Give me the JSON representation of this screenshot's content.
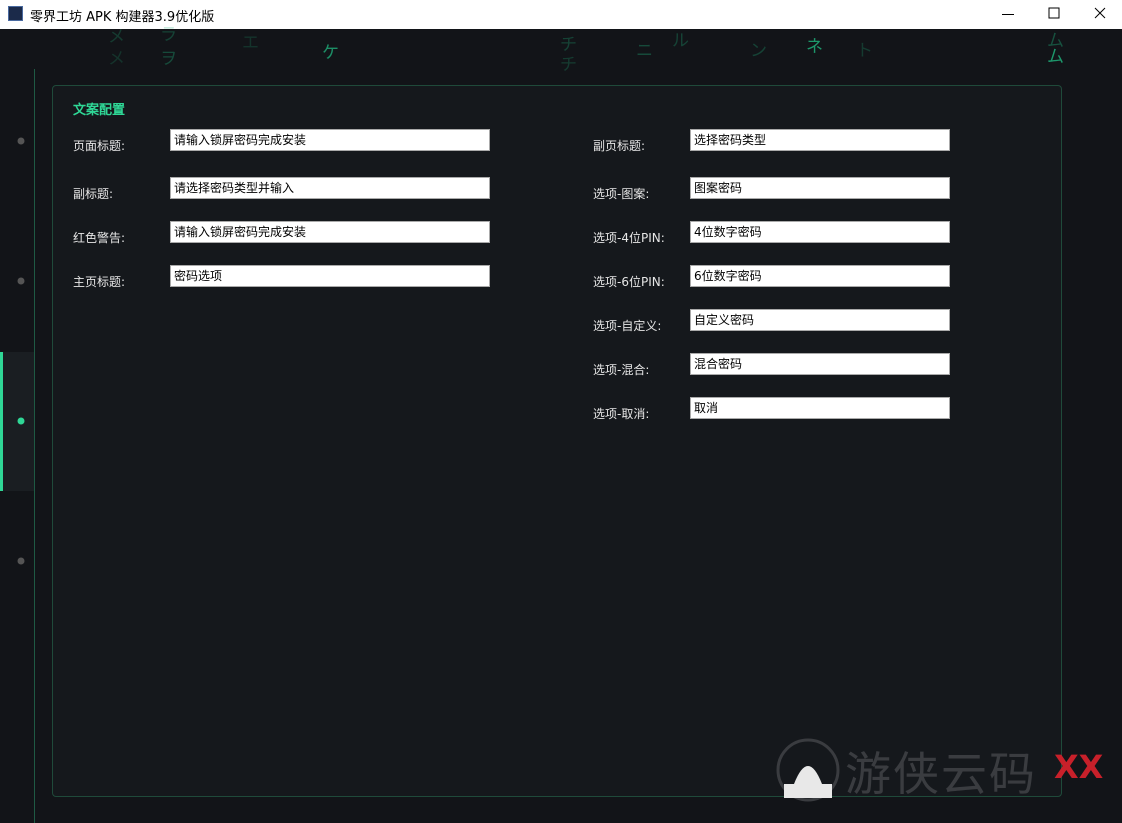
{
  "window": {
    "title": "零界工坊 APK 构建器3.9优化版"
  },
  "matrix_chars": [
    "メ",
    "メ",
    "ラ",
    "ヲ",
    "エ",
    "ケ",
    "チ",
    "チ",
    "ニ",
    "ル",
    "ン",
    "ネ",
    "ト",
    "ム",
    "ム"
  ],
  "section_title": "文案配置",
  "left_fields": [
    {
      "label": "页面标题:",
      "value": "请输入锁屏密码完成安装"
    },
    {
      "label": "副标题:",
      "value": "请选择密码类型并输入"
    },
    {
      "label": "红色警告:",
      "value": "请输入锁屏密码完成安装"
    },
    {
      "label": "主页标题:",
      "value": "密码选项"
    }
  ],
  "right_fields": [
    {
      "label": "副页标题:",
      "value": "选择密码类型"
    },
    {
      "label": "选项-图案:",
      "value": "图案密码"
    },
    {
      "label": "选项-4位PIN:",
      "value": "4位数字密码"
    },
    {
      "label": "选项-6位PIN:",
      "value": "6位数字密码"
    },
    {
      "label": "选项-自定义:",
      "value": "自定义密码"
    },
    {
      "label": "选项-混合:",
      "value": "混合密码"
    },
    {
      "label": "选项-取消:",
      "value": "取消"
    }
  ],
  "watermark": {
    "text": "游侠云码",
    "mark": "XX"
  }
}
